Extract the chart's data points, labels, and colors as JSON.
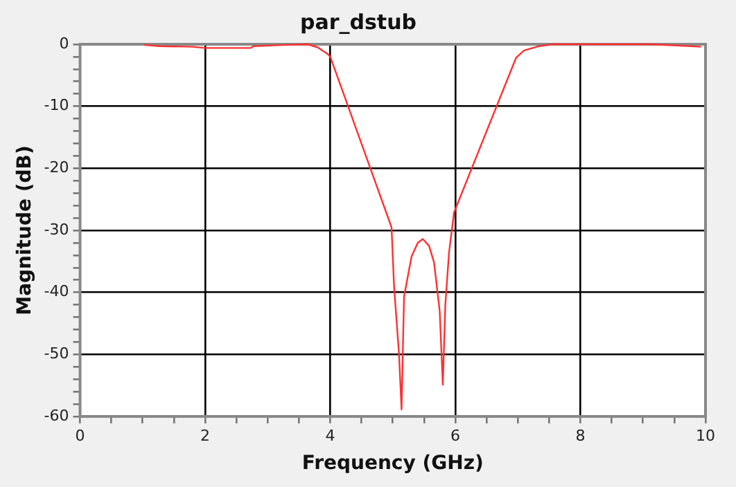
{
  "chart_data": {
    "type": "line",
    "title": "par_dstub",
    "xlabel": "Frequency (GHz)",
    "ylabel": "Magnitude (dB)",
    "xlim": [
      0,
      10
    ],
    "ylim": [
      -60,
      0
    ],
    "xticks": [
      0,
      {
        "value": 0.5,
        "label": null
      },
      {
        "value": 1,
        "label": null
      },
      {
        "value": 1.5,
        "label": null
      },
      2,
      {
        "value": 2.5,
        "label": null
      },
      {
        "value": 3,
        "label": null
      },
      {
        "value": 3.5,
        "label": null
      },
      4,
      {
        "value": 4.5,
        "label": null
      },
      {
        "value": 5,
        "label": null
      },
      {
        "value": 5.5,
        "label": null
      },
      6,
      {
        "value": 6.5,
        "label": null
      },
      {
        "value": 7,
        "label": null
      },
      {
        "value": 7.5,
        "label": null
      },
      8,
      {
        "value": 8.5,
        "label": null
      },
      {
        "value": 9,
        "label": null
      },
      {
        "value": 9.5,
        "label": null
      },
      10
    ],
    "yticks": [
      -60,
      {
        "value": -58,
        "label": null
      },
      {
        "value": -56,
        "label": null
      },
      {
        "value": -54,
        "label": null
      },
      {
        "value": -52,
        "label": null
      },
      -50,
      {
        "value": -48,
        "label": null
      },
      {
        "value": -46,
        "label": null
      },
      {
        "value": -44,
        "label": null
      },
      {
        "value": -42,
        "label": null
      },
      -40,
      {
        "value": -38,
        "label": null
      },
      {
        "value": -36,
        "label": null
      },
      {
        "value": -34,
        "label": null
      },
      {
        "value": -32,
        "label": null
      },
      -30,
      {
        "value": -28,
        "label": null
      },
      {
        "value": -26,
        "label": null
      },
      {
        "value": -24,
        "label": null
      },
      {
        "value": -22,
        "label": null
      },
      -20,
      {
        "value": -18,
        "label": null
      },
      {
        "value": -16,
        "label": null
      },
      {
        "value": -14,
        "label": null
      },
      {
        "value": -12,
        "label": null
      },
      -10,
      {
        "value": -8,
        "label": null
      },
      {
        "value": -6,
        "label": null
      },
      {
        "value": -4,
        "label": null
      },
      {
        "value": -2,
        "label": null
      },
      0
    ],
    "grid": true,
    "legend": false,
    "marker": "none",
    "line_style": "solid",
    "series": [
      {
        "color": "#ff3030",
        "x": [
          1.02,
          1.27,
          1.8,
          2.0,
          2.73,
          2.77,
          3.3,
          3.64,
          3.8,
          3.95,
          4.0,
          4.98,
          5.02,
          5.1,
          5.14,
          5.18,
          5.3,
          5.4,
          5.48,
          5.58,
          5.66,
          5.75,
          5.8,
          5.84,
          5.9,
          5.98,
          6.97,
          7.1,
          7.34,
          7.55,
          9.1,
          9.55,
          9.93
        ],
        "values": [
          -0.1,
          -0.3,
          -0.4,
          -0.6,
          -0.6,
          -0.3,
          -0.1,
          0,
          -0.5,
          -1.5,
          -2,
          -29.5,
          -39,
          -50,
          -58.9,
          -40.7,
          -34.2,
          -32,
          -31.4,
          -32.5,
          -35.2,
          -43,
          -54.9,
          -42,
          -33.5,
          -27.1,
          -2.2,
          -1,
          -0.3,
          0,
          0,
          -0.2,
          -0.4
        ]
      }
    ]
  }
}
